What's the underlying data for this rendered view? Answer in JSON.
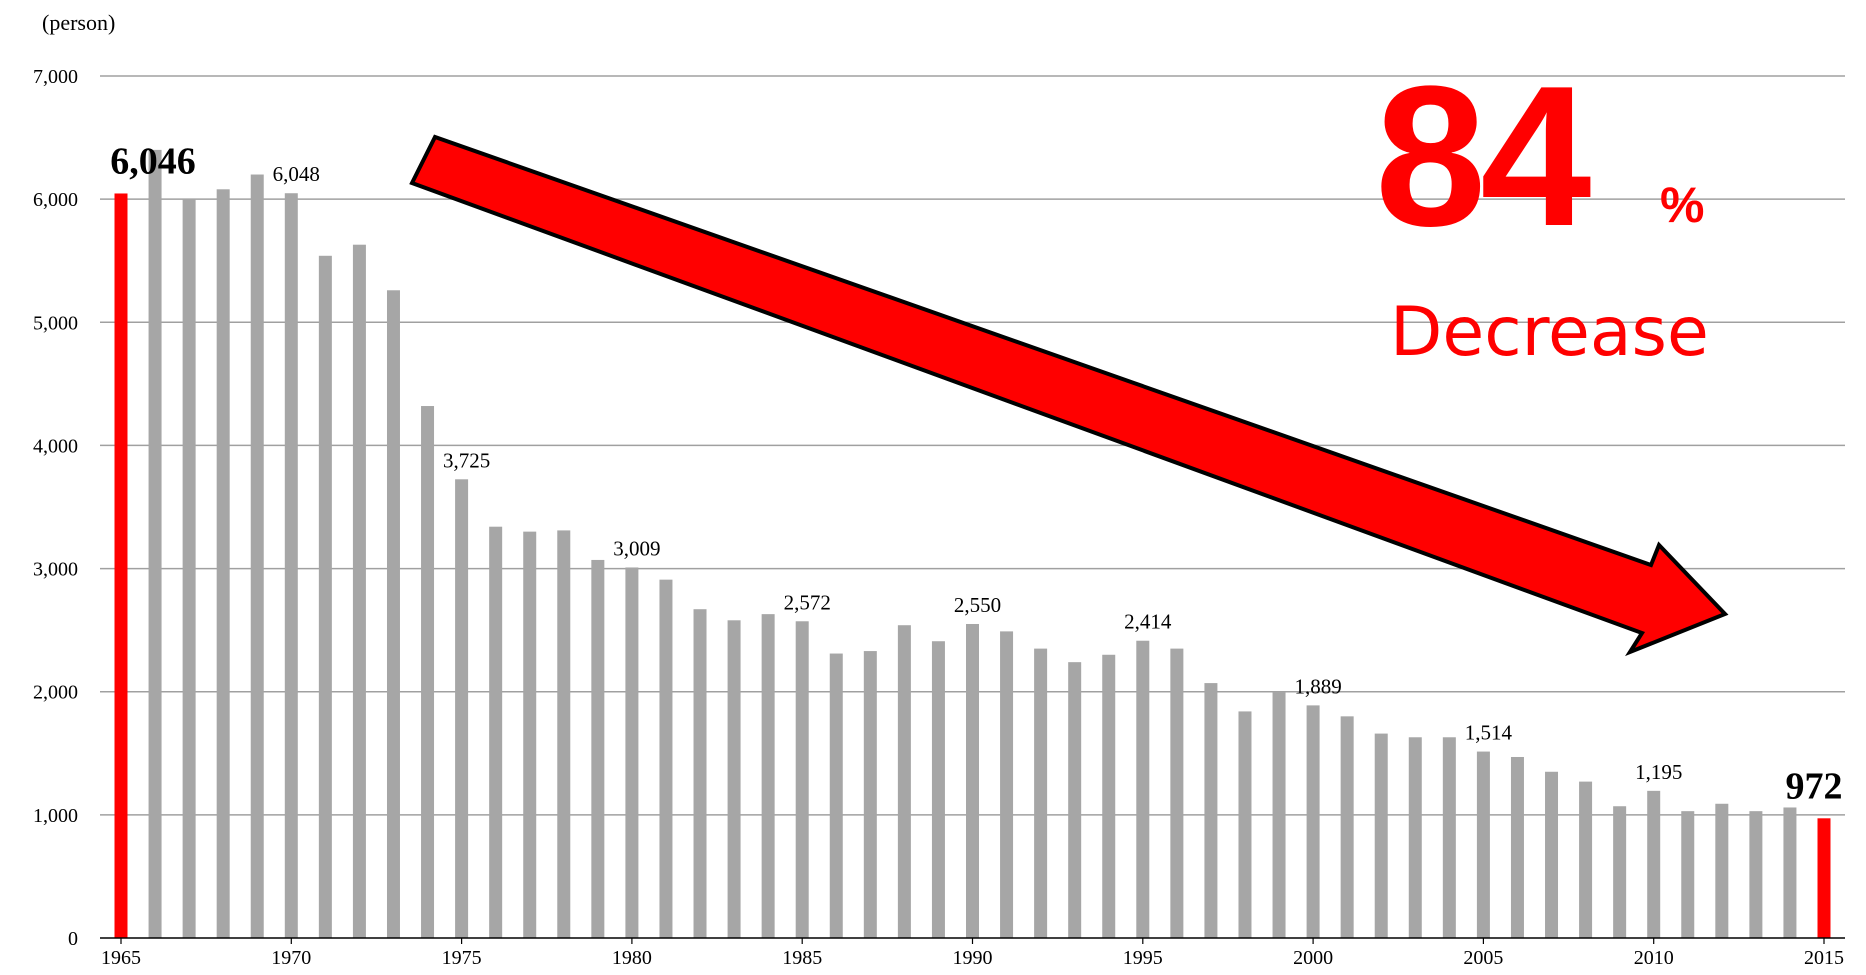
{
  "chart_data": {
    "type": "bar",
    "ylabel": "(person)",
    "ylim": [
      0,
      7000
    ],
    "yticks": [
      "0",
      "1,000",
      "2,000",
      "3,000",
      "4,000",
      "5,000",
      "6,000",
      "7,000"
    ],
    "xticks": [
      "1965",
      "1970",
      "1975",
      "1980",
      "1985",
      "1990",
      "1995",
      "2000",
      "2005",
      "2010",
      "2015"
    ],
    "x": [
      1965,
      1966,
      1967,
      1968,
      1969,
      1970,
      1971,
      1972,
      1973,
      1974,
      1975,
      1976,
      1977,
      1978,
      1979,
      1980,
      1981,
      1982,
      1983,
      1984,
      1985,
      1986,
      1987,
      1988,
      1989,
      1990,
      1991,
      1992,
      1993,
      1994,
      1995,
      1996,
      1997,
      1998,
      1999,
      2000,
      2001,
      2002,
      2003,
      2004,
      2005,
      2006,
      2007,
      2008,
      2009,
      2010,
      2011,
      2012,
      2013,
      2014,
      2015
    ],
    "values": [
      6046,
      6400,
      6000,
      6080,
      6200,
      6048,
      5540,
      5630,
      5260,
      4320,
      3725,
      3340,
      3300,
      3310,
      3070,
      3009,
      2910,
      2670,
      2580,
      2630,
      2572,
      2310,
      2330,
      2540,
      2410,
      2550,
      2490,
      2350,
      2240,
      2300,
      2414,
      2350,
      2070,
      1840,
      2000,
      1889,
      1800,
      1660,
      1630,
      1630,
      1514,
      1470,
      1350,
      1270,
      1070,
      1195,
      1030,
      1090,
      1030,
      1060,
      972
    ],
    "highlight_years": [
      1965,
      2015
    ],
    "highlight_color": "#ff0000",
    "bar_color": "#a6a6a6",
    "grid": true,
    "data_labels": [
      {
        "year": 1965,
        "text": "6,046",
        "style": "big"
      },
      {
        "year": 1970,
        "text": "6,048",
        "style": "small"
      },
      {
        "year": 1975,
        "text": "3,725",
        "style": "small"
      },
      {
        "year": 1980,
        "text": "3,009",
        "style": "small"
      },
      {
        "year": 1985,
        "text": "2,572",
        "style": "small"
      },
      {
        "year": 1990,
        "text": "2,550",
        "style": "small"
      },
      {
        "year": 1995,
        "text": "2,414",
        "style": "small"
      },
      {
        "year": 2000,
        "text": "1,889",
        "style": "small"
      },
      {
        "year": 2005,
        "text": "1,514",
        "style": "small"
      },
      {
        "year": 2010,
        "text": "1,195",
        "style": "small"
      },
      {
        "year": 2015,
        "text": "972",
        "style": "big"
      }
    ],
    "annotation": {
      "number": "84",
      "unit": "%",
      "word": "Decrease",
      "color": "#ff0000"
    }
  }
}
